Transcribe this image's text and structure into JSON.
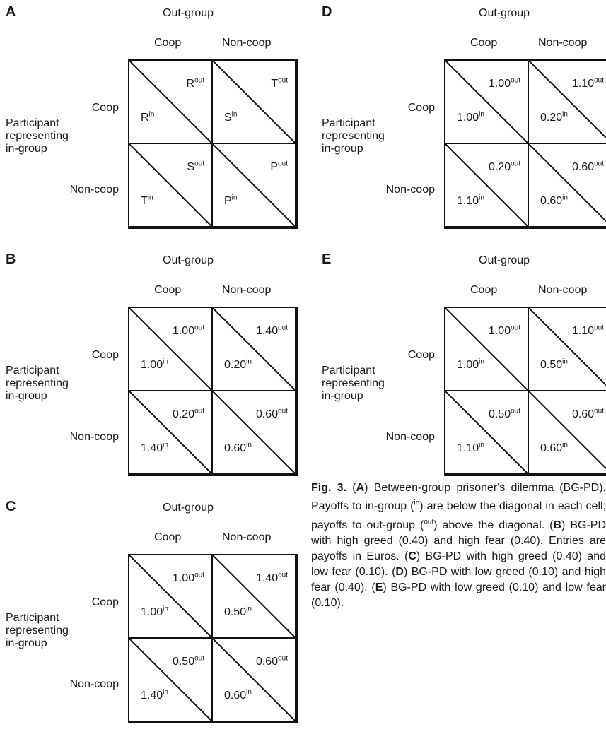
{
  "common": {
    "outgroup_label": "Out-group",
    "col_coop": "Coop",
    "col_noncoop": "Non-coop",
    "row_coop": "Coop",
    "row_noncoop": "Non-coop",
    "participant_line1": "Participant",
    "participant_line2": "representing",
    "participant_line3": "in-group"
  },
  "panels": [
    {
      "letter": "A",
      "cells": [
        {
          "out": "R",
          "in": "R"
        },
        {
          "out": "T",
          "in": "S"
        },
        {
          "out": "S",
          "in": "T"
        },
        {
          "out": "P",
          "in": "P"
        }
      ]
    },
    {
      "letter": "B",
      "cells": [
        {
          "out": "1.00",
          "in": "1.00"
        },
        {
          "out": "1.40",
          "in": "0.20"
        },
        {
          "out": "0.20",
          "in": "1.40"
        },
        {
          "out": "0.60",
          "in": "0.60"
        }
      ]
    },
    {
      "letter": "C",
      "cells": [
        {
          "out": "1.00",
          "in": "1.00"
        },
        {
          "out": "1.40",
          "in": "0.50"
        },
        {
          "out": "0.50",
          "in": "1.40"
        },
        {
          "out": "0.60",
          "in": "0.60"
        }
      ]
    },
    {
      "letter": "D",
      "cells": [
        {
          "out": "1.00",
          "in": "1.00"
        },
        {
          "out": "1.10",
          "in": "0.20"
        },
        {
          "out": "0.20",
          "in": "1.10"
        },
        {
          "out": "0.60",
          "in": "0.60"
        }
      ]
    },
    {
      "letter": "E",
      "cells": [
        {
          "out": "1.00",
          "in": "1.00"
        },
        {
          "out": "1.10",
          "in": "0.50"
        },
        {
          "out": "0.50",
          "in": "1.10"
        },
        {
          "out": "0.60",
          "in": "0.60"
        }
      ]
    }
  ],
  "superscripts": {
    "out": "out",
    "in": "in"
  },
  "caption": {
    "fig": "Fig. 3.",
    "text_segments": [
      {
        "t": " (",
        "b": false
      },
      {
        "t": "A",
        "b": true
      },
      {
        "t": ") Between-group prisoner's dilemma (BG-PD). Payoffs to in-group (",
        "b": false
      },
      {
        "t": "in",
        "b": false,
        "sup": true
      },
      {
        "t": ") are below the diagonal in each cell; payoffs to out-group (",
        "b": false
      },
      {
        "t": "out",
        "b": false,
        "sup": true
      },
      {
        "t": ") above the diagonal. (",
        "b": false
      },
      {
        "t": "B",
        "b": true
      },
      {
        "t": ") BG-PD with high greed (0.40) and high fear (0.40). Entries are payoffs in Euros. (",
        "b": false
      },
      {
        "t": "C",
        "b": true
      },
      {
        "t": ") BG-PD with high greed (0.40) and low fear (0.10). (",
        "b": false
      },
      {
        "t": "D",
        "b": true
      },
      {
        "t": ") BG-PD with low greed (0.10) and high fear (0.40). (",
        "b": false
      },
      {
        "t": "E",
        "b": true
      },
      {
        "t": ") BG-PD with low greed (0.10) and low fear (0.10).",
        "b": false
      }
    ]
  }
}
